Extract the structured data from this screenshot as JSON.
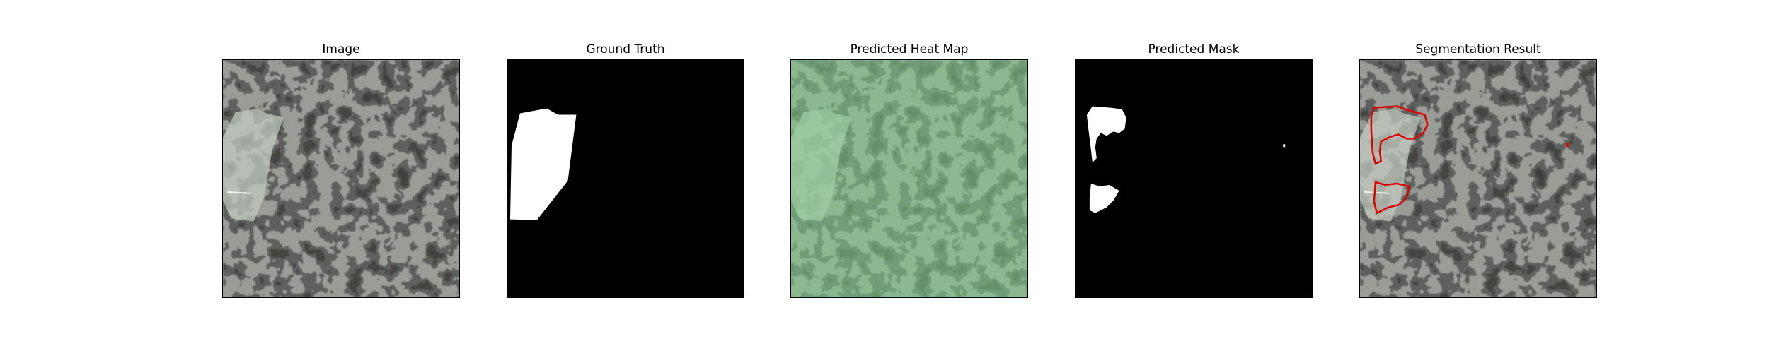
{
  "figure": {
    "panels": [
      {
        "title": "Image"
      },
      {
        "title": "Ground Truth"
      },
      {
        "title": "Predicted Heat Map"
      },
      {
        "title": "Predicted Mask"
      },
      {
        "title": "Segmentation Result"
      }
    ]
  },
  "colors": {
    "texture_background": "#9a9c98",
    "texture_spot": "#3b3d3a",
    "defect_patch": "#c4ccc0",
    "mask_foreground": "#ffffff",
    "mask_background": "#000000",
    "heatmap_tint": "#7fd08c",
    "contour": "#e00000"
  }
}
